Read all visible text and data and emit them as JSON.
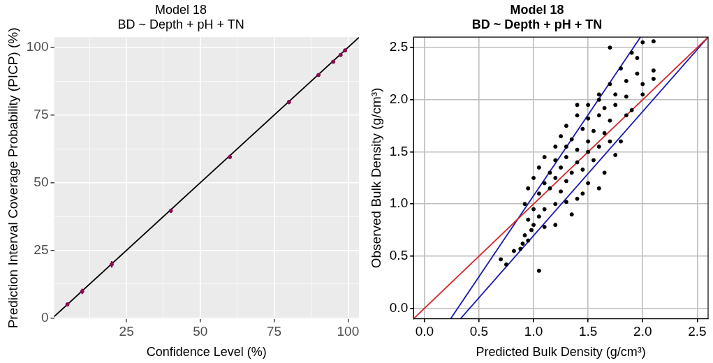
{
  "chart_data": [
    {
      "type": "scatter",
      "title": "Model 18",
      "subtitle": "BD ~ Depth + pH + TN",
      "xlabel": "Confidence Level (%)",
      "ylabel": "Prediction Interval Coverage Probability (PICP) (%)",
      "xlim": [
        0.5,
        103.7
      ],
      "ylim": [
        -0.3,
        103.8
      ],
      "xticks": [
        {
          "value": 12.5,
          "label": null
        },
        25,
        {
          "value": 37.5,
          "label": null
        },
        50,
        {
          "value": 62.5,
          "label": null
        },
        75,
        {
          "value": 87.5,
          "label": null
        },
        100
      ],
      "yticks": [
        0,
        {
          "value": 12.5,
          "label": null
        },
        25,
        {
          "value": 37.5,
          "label": null
        },
        50,
        {
          "value": 62.5,
          "label": null
        },
        75,
        {
          "value": 87.5,
          "label": null
        },
        100
      ],
      "grid": true,
      "series": [
        {
          "type": "line",
          "color": "#000000",
          "x": [
            0.5,
            103.7
          ],
          "values": [
            0.5,
            103.7
          ]
        },
        {
          "marker": "circle",
          "color": "#8b0a50",
          "x": [
            5,
            10,
            20,
            40,
            60,
            80,
            90,
            95,
            97.5,
            99
          ],
          "values": [
            5,
            9.8,
            19.8,
            39.6,
            59.5,
            79.8,
            89.8,
            94.7,
            97.2,
            98.9
          ],
          "errors": [
            0.6,
            1,
            1.2,
            0.8,
            0.8,
            0.8,
            0.6,
            0.6,
            0.5,
            0.4
          ]
        }
      ]
    },
    {
      "type": "scatter",
      "title": "Model 18",
      "subtitle": "BD ~ Depth + pH + TN",
      "xlabel": "Predicted Bulk Density (g/cm³)",
      "ylabel": "Observed Bulk Density (g/cm³)",
      "xlim": [
        -0.1,
        2.6
      ],
      "ylim": [
        -0.1,
        2.6
      ],
      "xticks": [
        {
          "value": 0,
          "label": "0.0"
        },
        0.5,
        {
          "value": 1,
          "label": "1.0"
        },
        1.5,
        {
          "value": 2,
          "label": "2.0"
        },
        2.5
      ],
      "yticks": [
        {
          "value": 0,
          "label": "0.0"
        },
        0.5,
        {
          "value": 1,
          "label": "1.0"
        },
        1.5,
        {
          "value": 2,
          "label": "2.0"
        },
        2.5
      ],
      "grid": true,
      "series": [
        {
          "marker": "circle",
          "color": "#000000",
          "x": [
            1.05,
            0.75,
            0.7,
            0.82,
            0.88,
            0.9,
            0.95,
            0.92,
            0.98,
            1.0,
            1.1,
            1.2,
            0.95,
            1.05,
            1.35,
            1.0,
            1.1,
            1.2,
            0.92,
            1.3,
            1.4,
            1.45,
            0.95,
            1.05,
            1.15,
            1.25,
            1.6,
            1.0,
            1.1,
            1.2,
            1.3,
            1.5,
            1.65,
            1.05,
            1.15,
            1.25,
            1.35,
            1.45,
            1.1,
            1.2,
            1.3,
            1.4,
            1.55,
            1.75,
            1.2,
            1.3,
            1.4,
            1.5,
            1.6,
            1.7,
            1.25,
            1.35,
            1.5,
            1.8,
            1.3,
            1.45,
            1.55,
            1.65,
            1.4,
            1.5,
            1.6,
            1.7,
            1.85,
            1.5,
            1.65,
            1.75,
            1.9,
            1.6,
            1.75,
            1.85,
            2.0,
            1.7,
            1.85,
            2.0,
            2.1,
            1.8,
            1.95,
            2.1,
            1.95,
            1.7,
            1.9,
            2.0,
            2.1,
            1.6,
            1.4
          ],
          "values": [
            0.36,
            0.42,
            0.47,
            0.55,
            0.57,
            0.62,
            0.65,
            0.7,
            0.75,
            0.8,
            0.78,
            0.8,
            0.85,
            0.88,
            0.9,
            0.95,
            0.95,
            1.0,
            1.0,
            1.02,
            1.05,
            1.1,
            1.15,
            1.1,
            1.15,
            1.12,
            1.15,
            1.25,
            1.2,
            1.25,
            1.22,
            1.2,
            1.3,
            1.35,
            1.3,
            1.35,
            1.3,
            1.33,
            1.45,
            1.42,
            1.45,
            1.4,
            1.42,
            1.47,
            1.55,
            1.55,
            1.52,
            1.5,
            1.55,
            1.6,
            1.65,
            1.62,
            1.6,
            1.6,
            1.75,
            1.72,
            1.7,
            1.68,
            1.85,
            1.82,
            1.85,
            1.8,
            1.85,
            1.95,
            1.92,
            1.95,
            1.9,
            2.05,
            2.05,
            2.03,
            2.05,
            2.15,
            2.18,
            2.15,
            2.2,
            2.3,
            2.25,
            2.28,
            2.4,
            2.5,
            2.45,
            2.55,
            2.56,
            2.0,
            1.95
          ]
        },
        {
          "type": "line",
          "color": "#d62728",
          "x": [
            -0.1,
            2.6
          ],
          "values": [
            -0.1,
            2.6
          ]
        },
        {
          "type": "line",
          "color": "#1a1ab0",
          "x": [
            0.24,
            1.98
          ],
          "values": [
            -0.1,
            2.6
          ]
        },
        {
          "type": "line",
          "color": "#1a1ab0",
          "x": [
            0.33,
            2.6
          ],
          "values": [
            -0.1,
            2.6
          ]
        }
      ]
    }
  ]
}
